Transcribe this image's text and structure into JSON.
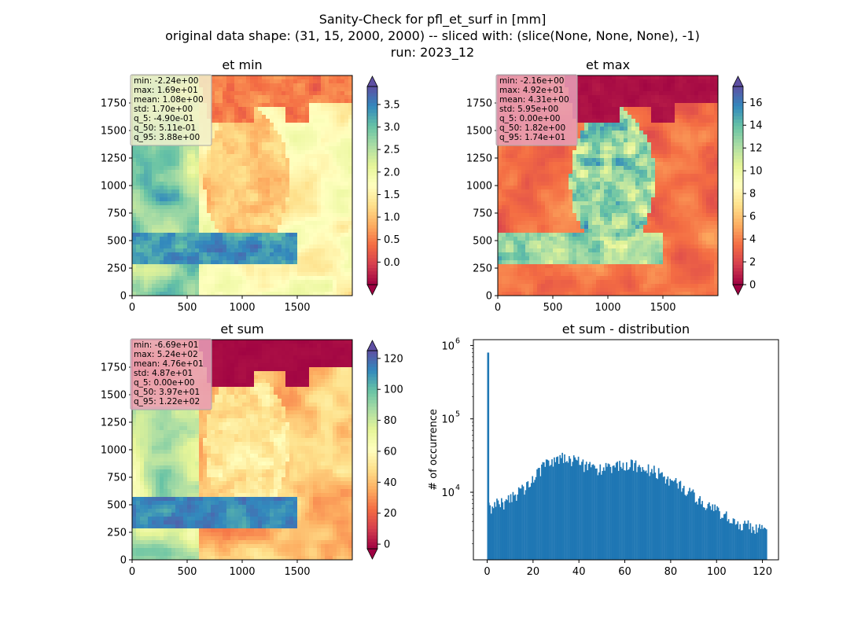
{
  "figure": {
    "title_lines": [
      "Sanity-Check for pfl_et_surf in [mm]",
      "original data shape: (31, 15, 2000, 2000) -- sliced with: (slice(None, None, None), -1)",
      "run: 2023_12"
    ]
  },
  "colors": {
    "hist_bar": "#1f77b4",
    "stats_box_light": "#f2f2cc",
    "stats_box_dark": "#e8a0b8",
    "colormap": "Spectral"
  },
  "chart_data": [
    {
      "type": "heatmap",
      "title": "et min",
      "colormap": "Spectral",
      "xlim": [
        0,
        2000
      ],
      "ylim": [
        0,
        2000
      ],
      "xticks": [
        0,
        500,
        1000,
        1500
      ],
      "yticks": [
        0,
        250,
        500,
        750,
        1000,
        1250,
        1500,
        1750
      ],
      "colorbar": {
        "range": [
          -0.5,
          3.9
        ],
        "ticks": [
          0.0,
          0.5,
          1.0,
          1.5,
          2.0,
          2.5,
          3.0,
          3.5
        ],
        "tick_labels": [
          "0.0",
          "0.5",
          "1.0",
          "1.5",
          "2.0",
          "2.5",
          "3.0",
          "3.5"
        ],
        "extend": "both"
      },
      "stats": [
        "min: -2.24e+00",
        "max: 1.69e+01",
        "mean: 1.08e+00",
        "std: 1.70e+00",
        "q_5: -4.90e-01",
        "q_50: 5.11e-01",
        "q_95: 3.88e+00"
      ]
    },
    {
      "type": "heatmap",
      "title": "et max",
      "colormap": "Spectral",
      "xlim": [
        0,
        2000
      ],
      "ylim": [
        0,
        2000
      ],
      "xticks": [
        0,
        500,
        1000,
        1500
      ],
      "yticks": [
        0,
        250,
        500,
        750,
        1000,
        1250,
        1500,
        1750
      ],
      "colorbar": {
        "range": [
          0,
          17.4
        ],
        "ticks": [
          0,
          2,
          4,
          6,
          8,
          10,
          12,
          14,
          16
        ],
        "tick_labels": [
          "0",
          "2",
          "4",
          "6",
          "8",
          "10",
          "12",
          "14",
          "16"
        ],
        "extend": "both"
      },
      "stats": [
        "min: -2.16e+00",
        "max: 4.92e+01",
        "mean: 4.31e+00",
        "std: 5.95e+00",
        "q_5: 0.00e+00",
        "q_50: 1.82e+00",
        "q_95: 1.74e+01"
      ]
    },
    {
      "type": "heatmap",
      "title": "et sum",
      "colormap": "Spectral",
      "xlim": [
        0,
        2000
      ],
      "ylim": [
        0,
        2000
      ],
      "xticks": [
        0,
        500,
        1000,
        1500
      ],
      "yticks": [
        0,
        250,
        500,
        750,
        1000,
        1250,
        1500,
        1750
      ],
      "colorbar": {
        "range": [
          -3,
          125
        ],
        "ticks": [
          0,
          20,
          40,
          60,
          80,
          100,
          120
        ],
        "tick_labels": [
          "0",
          "20",
          "40",
          "60",
          "80",
          "100",
          "120"
        ],
        "extend": "both"
      },
      "stats": [
        "min: -6.69e+01",
        "max: 5.24e+02",
        "mean: 4.76e+01",
        "std: 4.87e+01",
        "q_5: 0.00e+00",
        "q_50: 3.97e+01",
        "q_95: 1.22e+02"
      ]
    },
    {
      "type": "bar",
      "title": "et sum - distribution",
      "ylabel": "# of occurrence",
      "yscale": "log",
      "xlim": [
        -6,
        127
      ],
      "ylim": [
        1200,
        1200000
      ],
      "xticks": [
        0,
        20,
        40,
        60,
        80,
        100,
        120
      ],
      "yticks_major": [
        10000,
        100000,
        1000000
      ],
      "ytick_exponents": [
        "4",
        "5",
        "6"
      ],
      "spike": {
        "x": 0,
        "count": 800000
      },
      "series": [
        {
          "x": [
            0,
            2,
            4,
            6,
            8,
            10,
            12,
            14,
            16,
            18,
            20,
            22,
            24,
            26,
            28,
            30,
            32,
            34,
            36,
            38,
            40,
            42,
            44,
            46,
            48,
            50,
            52,
            54,
            56,
            58,
            60,
            62,
            64,
            66,
            68,
            70,
            72,
            74,
            76,
            78,
            80,
            82,
            84,
            86,
            88,
            90,
            92,
            94,
            96,
            98,
            100,
            102,
            104,
            106,
            108,
            110,
            112,
            114,
            116,
            118,
            120,
            122
          ],
          "counts": [
            6000,
            6500,
            7500,
            7000,
            7200,
            8000,
            9000,
            10500,
            11500,
            12500,
            16000,
            19000,
            22000,
            25000,
            27000,
            29000,
            31000,
            29500,
            28500,
            27000,
            25000,
            23500,
            22500,
            21500,
            21000,
            20500,
            21000,
            22000,
            22500,
            23000,
            23500,
            24000,
            23500,
            22500,
            21500,
            20500,
            19500,
            18500,
            17000,
            15500,
            14000,
            13000,
            12000,
            11000,
            10000,
            9000,
            8000,
            7200,
            6500,
            6000,
            5500,
            5000,
            4600,
            4300,
            4000,
            3800,
            3600,
            3400,
            3200,
            3100,
            3000,
            2800
          ]
        }
      ]
    }
  ]
}
